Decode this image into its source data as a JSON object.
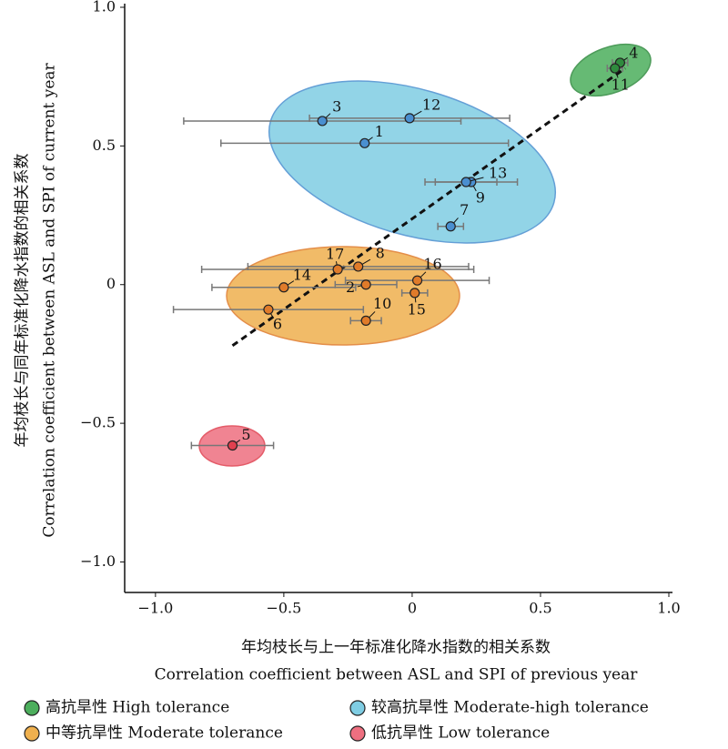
{
  "chart_data": {
    "type": "scatter",
    "xlabel": [
      "年均枝长与上一年标准化降水指数的相关系数",
      "Correlation coefficient between ASL and SPI of previous year"
    ],
    "ylabel": [
      "年均枝长与同年标准化降水指数的相关系数",
      "Correlation coefficient between ASL and SPI of current year"
    ],
    "xlim": [
      -1.12,
      1.0
    ],
    "ylim": [
      -1.11,
      1.0
    ],
    "xticks": [
      {
        "value": -1.0,
        "label": "−1.0"
      },
      {
        "value": -0.5,
        "label": "−0.5"
      },
      0,
      {
        "value": 0.5,
        "label": "0.5"
      },
      {
        "value": 1.0,
        "label": "1.0"
      }
    ],
    "yticks": [
      {
        "value": 1.0,
        "label": "1.0"
      },
      {
        "value": 0.5,
        "label": "0.5"
      },
      0,
      {
        "value": -0.5,
        "label": "−0.5"
      },
      {
        "value": -1.0,
        "label": "−1.0"
      }
    ],
    "series": [
      {
        "name": "高抗旱性 High tolerance",
        "color": "#2f8a3e",
        "region_color": "#4cae5c",
        "labels": [
          "4",
          "11"
        ],
        "x": [
          0.81,
          0.79
        ],
        "y": [
          0.8,
          0.78
        ],
        "xerr": [
          0.03,
          0.03
        ]
      },
      {
        "name": "较高抗旱性 Moderate-high tolerance",
        "color": "#4a8fd0",
        "region_color": "#7fcde3",
        "labels": [
          "1",
          "3",
          "7",
          "9",
          "12",
          "13"
        ],
        "x": [
          -0.185,
          -0.35,
          0.15,
          0.23,
          -0.01,
          0.21
        ],
        "y": [
          0.51,
          0.59,
          0.21,
          0.37,
          0.6,
          0.37
        ],
        "xerr": [
          0.56,
          0.54,
          0.05,
          0.18,
          0.39,
          0.12
        ]
      },
      {
        "name": "中等抗旱性 Moderate tolerance",
        "color": "#e07b2a",
        "region_color": "#efb04e",
        "labels": [
          "2",
          "6",
          "8",
          "10",
          "14",
          "15",
          "16",
          "17"
        ],
        "x": [
          -0.18,
          -0.56,
          -0.21,
          -0.18,
          -0.5,
          0.01,
          0.02,
          -0.29
        ],
        "y": [
          0.0,
          -0.09,
          0.065,
          -0.13,
          -0.01,
          -0.03,
          0.015,
          0.055
        ],
        "xerr": [
          0.12,
          0.37,
          0.43,
          0.06,
          0.28,
          0.05,
          0.28,
          0.53
        ]
      },
      {
        "name": "低抗旱性 Low tolerance",
        "color": "#e0404f",
        "region_color": "#ee6f80",
        "labels": [
          "5"
        ],
        "x": [
          -0.7
        ],
        "y": [
          -0.58
        ],
        "xerr": [
          0.16
        ]
      }
    ],
    "trend_line": {
      "x": [
        -0.7,
        0.83
      ],
      "y": [
        -0.22,
        0.78
      ]
    }
  }
}
